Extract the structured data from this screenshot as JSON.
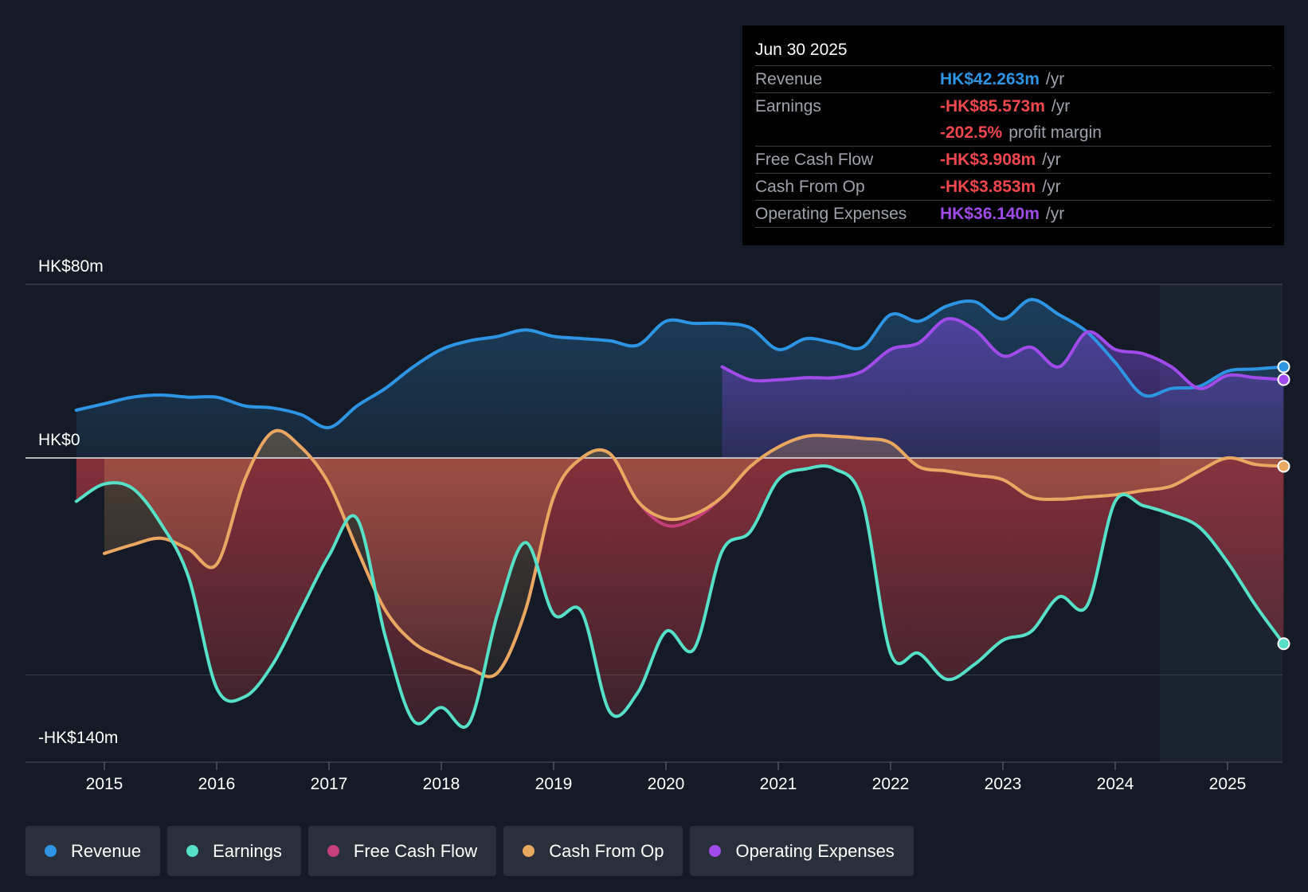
{
  "chart_data": {
    "type": "area",
    "y_labels": {
      "top": "HK$80m",
      "zero": "HK$0",
      "bottom": "-HK$140m"
    },
    "ylim": [
      -140,
      80
    ],
    "xlim": [
      2014.75,
      2025.5
    ],
    "x_ticks": [
      "2015",
      "2016",
      "2017",
      "2018",
      "2019",
      "2020",
      "2021",
      "2022",
      "2023",
      "2024",
      "2025"
    ],
    "x_tick_values": [
      2015,
      2016,
      2017,
      2018,
      2019,
      2020,
      2021,
      2022,
      2023,
      2024,
      2025
    ],
    "forecast_start": 2024.5,
    "series": [
      {
        "name": "Revenue",
        "color": "#2d95e3",
        "x": [
          2014.75,
          2015.0,
          2015.25,
          2015.5,
          2015.75,
          2016.0,
          2016.25,
          2016.5,
          2016.75,
          2017.0,
          2017.25,
          2017.5,
          2017.75,
          2018.0,
          2018.25,
          2018.5,
          2018.75,
          2019.0,
          2019.25,
          2019.5,
          2019.75,
          2020.0,
          2020.25,
          2020.5,
          2020.75,
          2021.0,
          2021.25,
          2021.5,
          2021.75,
          2022.0,
          2022.25,
          2022.5,
          2022.75,
          2023.0,
          2023.25,
          2023.5,
          2023.75,
          2024.0,
          2024.25,
          2024.5,
          2024.75,
          2025.0,
          2025.25,
          2025.5
        ],
        "y": [
          22,
          25,
          28,
          29,
          28,
          28,
          24,
          23,
          20,
          14,
          24,
          32,
          42,
          50,
          54,
          56,
          59,
          56,
          55,
          54,
          52,
          63,
          62,
          62,
          60,
          50,
          55,
          53,
          51,
          66,
          63,
          70,
          72,
          64,
          73,
          66,
          58,
          44,
          29,
          32,
          33,
          40,
          41,
          42
        ]
      },
      {
        "name": "Earnings",
        "color": "#57e0c8",
        "x": [
          2014.75,
          2015.0,
          2015.25,
          2015.5,
          2015.75,
          2016.0,
          2016.25,
          2016.5,
          2016.75,
          2017.0,
          2017.25,
          2017.5,
          2017.75,
          2018.0,
          2018.25,
          2018.5,
          2018.75,
          2019.0,
          2019.25,
          2019.5,
          2019.75,
          2020.0,
          2020.25,
          2020.5,
          2020.75,
          2021.0,
          2021.25,
          2021.5,
          2021.75,
          2022.0,
          2022.25,
          2022.5,
          2022.75,
          2023.0,
          2023.25,
          2023.5,
          2023.75,
          2024.0,
          2024.25,
          2024.5,
          2024.75,
          2025.0,
          2025.25,
          2025.5
        ],
        "y": [
          -20,
          -12,
          -14,
          -30,
          -55,
          -106,
          -110,
          -95,
          -70,
          -45,
          -28,
          -82,
          -121,
          -115,
          -122,
          -72,
          -39,
          -72,
          -71,
          -117,
          -108,
          -80,
          -88,
          -43,
          -34,
          -10,
          -5,
          -5,
          -20,
          -90,
          -90,
          -102,
          -95,
          -84,
          -80,
          -64,
          -68,
          -20,
          -22,
          -26,
          -32,
          -48,
          -68,
          -85.6
        ]
      },
      {
        "name": "Free Cash Flow",
        "color": "#c43f7c",
        "x": [
          2015.0,
          2015.25,
          2015.5,
          2015.75,
          2016.0,
          2016.25,
          2016.5,
          2016.75,
          2017.0,
          2017.25,
          2017.5,
          2017.75,
          2018.0,
          2018.25,
          2018.5,
          2018.75,
          2019.0,
          2019.25,
          2019.5,
          2019.75,
          2020.0,
          2020.25,
          2020.5,
          2020.75,
          2021.0,
          2021.25,
          2021.5,
          2021.75,
          2022.0,
          2022.25,
          2022.5,
          2022.75,
          2023.0,
          2023.25,
          2023.5,
          2023.75,
          2024.0,
          2024.25,
          2024.5,
          2024.75,
          2025.0,
          2025.25,
          2025.5
        ],
        "y": [
          -44,
          -40,
          -37,
          -42,
          -49,
          -10,
          12,
          5,
          -12,
          -42,
          -70,
          -85,
          -92,
          -97,
          -99,
          -70,
          -18,
          0,
          2,
          -20,
          -31,
          -28,
          -18,
          -4,
          5,
          10,
          10,
          9,
          7,
          -4,
          -6,
          -8,
          -10,
          -18,
          -19,
          -18,
          -17,
          -15,
          -13,
          -6,
          0,
          -3,
          -3.9
        ]
      },
      {
        "name": "Cash From Op",
        "color": "#e8a860",
        "x": [
          2015.0,
          2015.25,
          2015.5,
          2015.75,
          2016.0,
          2016.25,
          2016.5,
          2016.75,
          2017.0,
          2017.25,
          2017.5,
          2017.75,
          2018.0,
          2018.25,
          2018.5,
          2018.75,
          2019.0,
          2019.25,
          2019.5,
          2019.75,
          2020.0,
          2020.25,
          2020.5,
          2020.75,
          2021.0,
          2021.25,
          2021.5,
          2021.75,
          2022.0,
          2022.25,
          2022.5,
          2022.75,
          2023.0,
          2023.25,
          2023.5,
          2023.75,
          2024.0,
          2024.25,
          2024.5,
          2024.75,
          2025.0,
          2025.25,
          2025.5
        ],
        "y": [
          -44,
          -40,
          -37,
          -42,
          -49,
          -10,
          12,
          5,
          -12,
          -42,
          -70,
          -85,
          -92,
          -97,
          -99,
          -70,
          -18,
          0,
          2,
          -20,
          -28,
          -26,
          -18,
          -4,
          5,
          10,
          10,
          9,
          7,
          -4,
          -6,
          -8,
          -10,
          -18,
          -19,
          -18,
          -17,
          -15,
          -13,
          -6,
          0,
          -3,
          -3.85
        ]
      },
      {
        "name": "Operating Expenses",
        "color": "#a14bea",
        "x": [
          2020.5,
          2020.75,
          2021.0,
          2021.25,
          2021.5,
          2021.75,
          2022.0,
          2022.25,
          2022.5,
          2022.75,
          2023.0,
          2023.25,
          2023.5,
          2023.75,
          2024.0,
          2024.25,
          2024.5,
          2024.75,
          2025.0,
          2025.25,
          2025.5
        ],
        "y": [
          42,
          36,
          36,
          37,
          37,
          40,
          50,
          53,
          64,
          59,
          47,
          51,
          42,
          58,
          50,
          48,
          42,
          32,
          38,
          37,
          36.1
        ]
      }
    ]
  },
  "tooltip": {
    "date": "Jun 30 2025",
    "rows": [
      {
        "label": "Revenue",
        "value": "HK$42.263m",
        "unit": "/yr",
        "color": "#2d95e3"
      },
      {
        "label": "Earnings",
        "value": "-HK$85.573m",
        "unit": "/yr",
        "color": "#f0484e"
      },
      {
        "label": "",
        "value": "-202.5%",
        "unit": "profit margin",
        "color": "#f0484e"
      },
      {
        "label": "Free Cash Flow",
        "value": "-HK$3.908m",
        "unit": "/yr",
        "color": "#f0484e"
      },
      {
        "label": "Cash From Op",
        "value": "-HK$3.853m",
        "unit": "/yr",
        "color": "#f0484e"
      },
      {
        "label": "Operating Expenses",
        "value": "HK$36.140m",
        "unit": "/yr",
        "color": "#a14bea"
      }
    ]
  },
  "legend": [
    {
      "label": "Revenue",
      "color": "#2d95e3"
    },
    {
      "label": "Earnings",
      "color": "#57e0c8"
    },
    {
      "label": "Free Cash Flow",
      "color": "#c43f7c"
    },
    {
      "label": "Cash From Op",
      "color": "#e8a860"
    },
    {
      "label": "Operating Expenses",
      "color": "#a14bea"
    }
  ]
}
